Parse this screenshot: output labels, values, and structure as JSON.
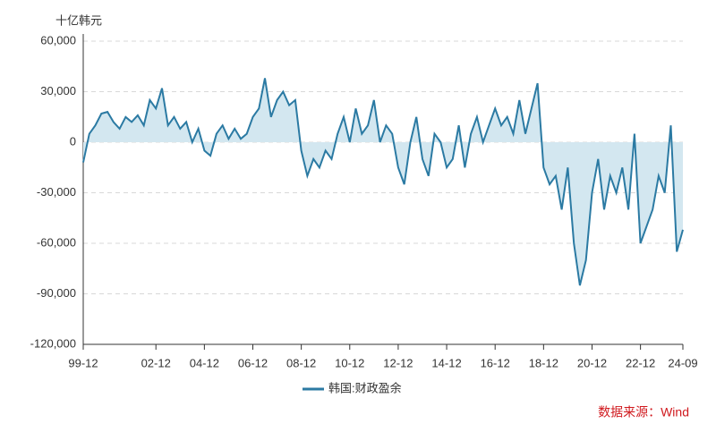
{
  "chart_data": {
    "type": "area",
    "y_axis_label": "十亿韩元",
    "source": "数据来源：Wind",
    "categories": [
      "99-12",
      null,
      null,
      null,
      null,
      null,
      null,
      null,
      null,
      null,
      null,
      null,
      "02-12",
      null,
      null,
      null,
      null,
      null,
      null,
      null,
      "04-12",
      null,
      null,
      null,
      null,
      null,
      null,
      null,
      "06-12",
      null,
      null,
      null,
      null,
      null,
      null,
      null,
      "08-12",
      null,
      null,
      null,
      null,
      null,
      null,
      null,
      "10-12",
      null,
      null,
      null,
      null,
      null,
      null,
      null,
      "12-12",
      null,
      null,
      null,
      null,
      null,
      null,
      null,
      "14-12",
      null,
      null,
      null,
      null,
      null,
      null,
      null,
      "16-12",
      null,
      null,
      null,
      null,
      null,
      null,
      null,
      "18-12",
      null,
      null,
      null,
      null,
      null,
      null,
      null,
      "20-12",
      null,
      null,
      null,
      null,
      null,
      null,
      null,
      "22-12",
      null,
      null,
      null,
      null,
      null,
      null,
      "24-09"
    ],
    "series": [
      {
        "name": "韩国:财政盈余",
        "color": "#2b7aa3",
        "fill": "#d3e7f0",
        "values": [
          -12000,
          5000,
          10000,
          17000,
          18000,
          12000,
          8000,
          15000,
          12000,
          16000,
          10000,
          25000,
          20000,
          32000,
          10000,
          15000,
          8000,
          12000,
          0,
          8000,
          -5000,
          -8000,
          5000,
          10000,
          2000,
          8000,
          2000,
          5000,
          15000,
          20000,
          38000,
          15000,
          25000,
          30000,
          22000,
          25000,
          -5000,
          -20000,
          -10000,
          -15000,
          -5000,
          -10000,
          5000,
          15000,
          0,
          20000,
          5000,
          10000,
          25000,
          0,
          10000,
          5000,
          -15000,
          -25000,
          0,
          15000,
          -10000,
          -20000,
          5000,
          0,
          -15000,
          -10000,
          10000,
          -15000,
          5000,
          15000,
          0,
          10000,
          20000,
          10000,
          15000,
          5000,
          25000,
          5000,
          20000,
          35000,
          -15000,
          -25000,
          -20000,
          -40000,
          -15000,
          -60000,
          -85000,
          -70000,
          -30000,
          -10000,
          -40000,
          -20000,
          -30000,
          -15000,
          -40000,
          5000,
          -60000,
          -50000,
          -40000,
          -20000,
          -30000,
          10000,
          -65000,
          -52000
        ]
      }
    ],
    "ylim": [
      -120000,
      60000
    ],
    "yticks": [
      {
        "value": -120000,
        "label": "-120,000"
      },
      {
        "value": -90000,
        "label": "-90,000"
      },
      {
        "value": -60000,
        "label": "-60,000"
      },
      {
        "value": -30000,
        "label": "-30,000"
      },
      0,
      {
        "value": 30000,
        "label": "30,000"
      },
      {
        "value": 60000,
        "label": "60,000"
      }
    ],
    "grid": true,
    "legend": "bottom"
  }
}
